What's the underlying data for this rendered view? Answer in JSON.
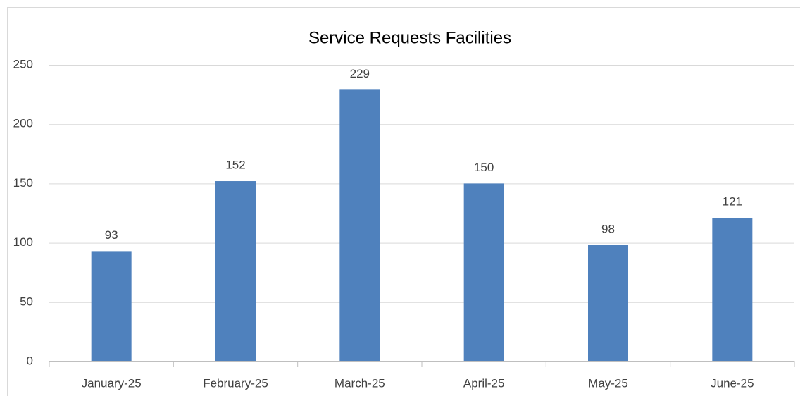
{
  "chart_data": {
    "type": "bar",
    "title": "Service Requests Facilities",
    "categories": [
      "January-25",
      "February-25",
      "March-25",
      "April-25",
      "May-25",
      "June-25"
    ],
    "values": [
      93,
      152,
      229,
      150,
      98,
      121
    ],
    "color": "#4f81bd",
    "ylim": [
      0,
      250
    ],
    "yticks": [
      0,
      50,
      100,
      150,
      200,
      250
    ],
    "grid": true
  }
}
